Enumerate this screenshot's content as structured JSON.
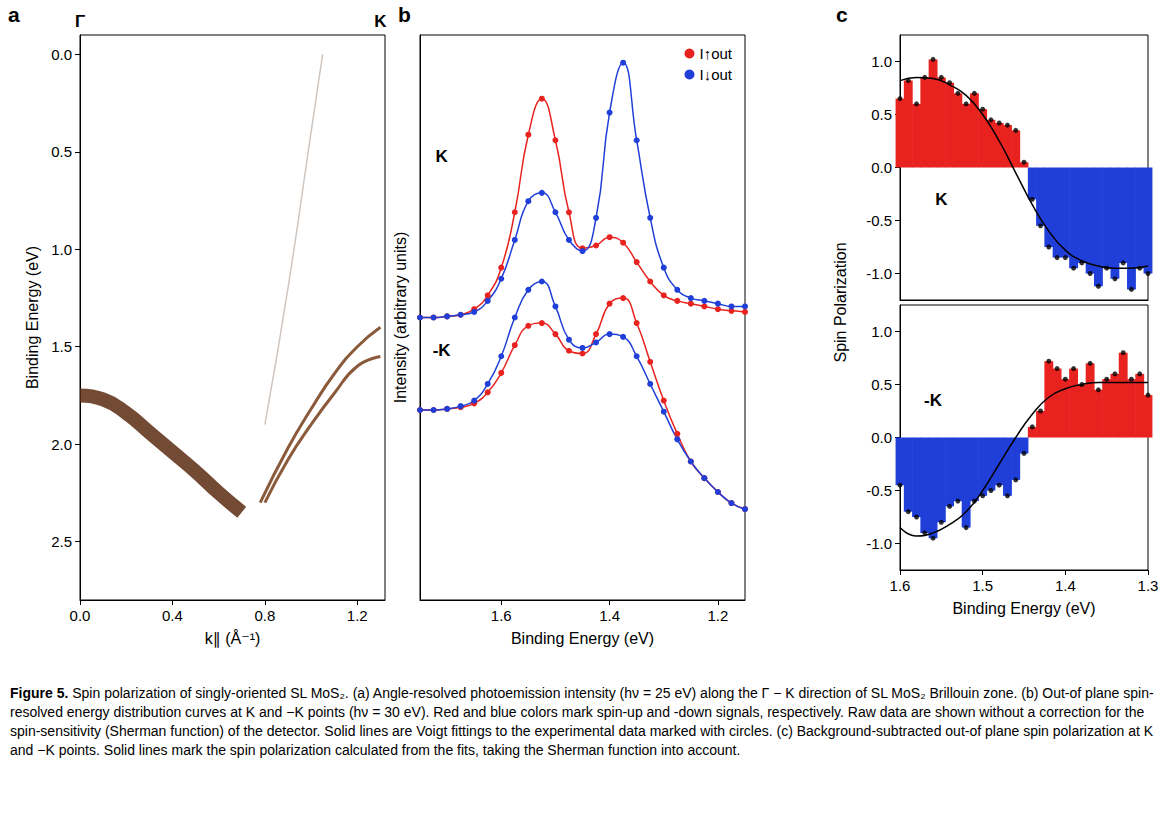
{
  "chart_data": [
    {
      "type": "line",
      "title": "a",
      "xlabel": "k∥ (Å⁻¹)",
      "ylabel": "Binding Energy (eV)",
      "xlim": [
        0,
        1.32
      ],
      "xticks": [
        {
          "value": 0,
          "label": "0.0"
        },
        {
          "value": 0.4,
          "label": "0.4"
        },
        {
          "value": 0.8,
          "label": "0.8"
        },
        {
          "value": 1.2,
          "label": "1.2"
        }
      ],
      "ylim": [
        2.8,
        -0.1
      ],
      "yticks": [
        {
          "value": 0,
          "label": "0.0"
        },
        {
          "value": 0.5,
          "label": "0.5"
        },
        {
          "value": 1,
          "label": "1.0"
        },
        {
          "value": 1.5,
          "label": "1.5"
        },
        {
          "value": 2,
          "label": "2.0"
        },
        {
          "value": 2.5,
          "label": "2.5"
        }
      ],
      "annotations": [
        {
          "text": "Γ",
          "x": 0
        },
        {
          "text": "K",
          "x": 1.3
        }
      ],
      "series": [
        {
          "color": "#5b2c10",
          "x": [
            0,
            0.1,
            0.2,
            0.3,
            0.4,
            0.5,
            0.6,
            0.7
          ],
          "values": [
            1.75,
            1.77,
            1.84,
            1.94,
            2.04,
            2.14,
            2.25,
            2.35
          ]
        },
        {
          "color": "#8a5a3a",
          "x": [
            0.78,
            0.9,
            1.0,
            1.1,
            1.2,
            1.3
          ],
          "values": [
            2.3,
            2.02,
            1.82,
            1.64,
            1.5,
            1.4
          ]
        },
        {
          "color": "#8a5a3a",
          "x": [
            0.8,
            0.9,
            1.0,
            1.1,
            1.2,
            1.3
          ],
          "values": [
            2.3,
            2.08,
            1.9,
            1.74,
            1.6,
            1.55
          ]
        },
        {
          "color": "#cfc6c0",
          "x": [
            0.8,
            0.9,
            1.0,
            1.05
          ],
          "values": [
            1.9,
            1.2,
            0.4,
            0.0
          ]
        }
      ]
    },
    {
      "type": "line",
      "title": "b",
      "xlabel": "Binding Energy (eV)",
      "ylabel": "Intensity (arbitrary units)",
      "tick_labels": "x",
      "legend": "upper right",
      "marker": "circle",
      "xlim": [
        1.75,
        1.15
      ],
      "xticks": [
        {
          "value": 1.6,
          "label": "1.6"
        },
        {
          "value": 1.4,
          "label": "1.4"
        },
        {
          "value": 1.2,
          "label": "1.2"
        }
      ],
      "ylim": [
        0,
        10.2
      ],
      "annotations": [
        {
          "text": "K",
          "x": 1.71,
          "y": 8.0
        },
        {
          "text": "-K",
          "x": 1.71,
          "y": 4.5
        }
      ],
      "series": [
        {
          "name": "I↑out",
          "color": "#e8231f",
          "x": [
            1.75,
            1.725,
            1.7,
            1.675,
            1.65,
            1.625,
            1.6,
            1.575,
            1.55,
            1.525,
            1.5,
            1.475,
            1.45,
            1.425,
            1.4,
            1.375,
            1.35,
            1.325,
            1.3,
            1.275,
            1.25,
            1.225,
            1.2,
            1.175,
            1.15
          ],
          "values": [
            5.1,
            5.1,
            5.12,
            5.15,
            5.25,
            5.5,
            6.0,
            7.0,
            8.4,
            9.05,
            8.3,
            7.0,
            6.35,
            6.4,
            6.55,
            6.45,
            6.1,
            5.75,
            5.5,
            5.4,
            5.35,
            5.3,
            5.25,
            5.22,
            5.2
          ]
        },
        {
          "name": "I↓out",
          "color": "#1f3fd8",
          "x": [
            1.75,
            1.725,
            1.7,
            1.675,
            1.65,
            1.625,
            1.6,
            1.575,
            1.55,
            1.525,
            1.5,
            1.475,
            1.45,
            1.425,
            1.4,
            1.375,
            1.35,
            1.325,
            1.3,
            1.275,
            1.25,
            1.225,
            1.2,
            1.175,
            1.15
          ],
          "values": [
            5.1,
            5.1,
            5.12,
            5.15,
            5.2,
            5.4,
            5.8,
            6.5,
            7.2,
            7.35,
            7.0,
            6.5,
            6.3,
            6.9,
            8.8,
            9.7,
            8.3,
            6.9,
            6.0,
            5.6,
            5.45,
            5.4,
            5.35,
            5.3,
            5.3
          ]
        },
        {
          "name": "I↑out",
          "color": "#e8231f",
          "x": [
            1.75,
            1.725,
            1.7,
            1.675,
            1.65,
            1.625,
            1.6,
            1.575,
            1.55,
            1.525,
            1.5,
            1.475,
            1.45,
            1.425,
            1.4,
            1.375,
            1.35,
            1.325,
            1.3,
            1.275,
            1.25,
            1.225,
            1.2,
            1.175,
            1.15
          ],
          "values": [
            3.43,
            3.43,
            3.45,
            3.48,
            3.55,
            3.75,
            4.1,
            4.6,
            4.95,
            5.0,
            4.8,
            4.5,
            4.45,
            4.8,
            5.35,
            5.45,
            5.0,
            4.3,
            3.6,
            3.0,
            2.5,
            2.2,
            1.95,
            1.75,
            1.64
          ]
        },
        {
          "name": "I↓out",
          "color": "#1f3fd8",
          "x": [
            1.75,
            1.725,
            1.7,
            1.675,
            1.65,
            1.625,
            1.6,
            1.575,
            1.55,
            1.525,
            1.5,
            1.475,
            1.45,
            1.425,
            1.4,
            1.375,
            1.35,
            1.325,
            1.3,
            1.275,
            1.25,
            1.225,
            1.2,
            1.175,
            1.15
          ],
          "values": [
            3.43,
            3.43,
            3.45,
            3.5,
            3.6,
            3.9,
            4.4,
            5.1,
            5.6,
            5.75,
            5.3,
            4.7,
            4.55,
            4.65,
            4.8,
            4.75,
            4.4,
            3.9,
            3.4,
            2.9,
            2.5,
            2.2,
            1.95,
            1.75,
            1.64
          ]
        }
      ]
    },
    {
      "type": "area",
      "title": "c",
      "ylabel": "Spin Polarization",
      "tick_labels": "y",
      "xlim": [
        1.6,
        1.3
      ],
      "ylim": [
        -1.25,
        1.25
      ],
      "yticks": [
        {
          "value": -1,
          "label": "-1.0"
        },
        {
          "value": -0.5,
          "label": "-0.5"
        },
        {
          "value": 0,
          "label": "0.0"
        },
        {
          "value": 0.5,
          "label": "0.5"
        },
        {
          "value": 1,
          "label": "1.0"
        }
      ],
      "annotations": [
        {
          "text": "K",
          "x": 1.55,
          "y": -0.3
        }
      ],
      "series": [
        {
          "type": "area",
          "x": [
            1.6,
            1.59,
            1.58,
            1.57,
            1.56,
            1.55,
            1.54,
            1.53,
            1.52,
            1.51,
            1.5,
            1.49,
            1.48,
            1.47,
            1.46,
            1.45,
            1.44,
            1.43,
            1.42,
            1.41,
            1.4,
            1.39,
            1.38,
            1.37,
            1.36,
            1.35,
            1.34,
            1.33,
            1.32,
            1.31,
            1.3
          ],
          "values": [
            0.65,
            0.82,
            0.6,
            0.85,
            1.02,
            0.85,
            0.8,
            0.7,
            0.6,
            0.7,
            0.55,
            0.45,
            0.42,
            0.4,
            0.35,
            0.05,
            -0.3,
            -0.55,
            -0.75,
            -0.85,
            -0.85,
            -0.95,
            -0.9,
            -1.0,
            -1.12,
            -0.95,
            -1.05,
            -0.9,
            -1.15,
            -0.95,
            -1.0
          ],
          "colors": [
            "#e8231f",
            "#e8231f",
            "#e8231f",
            "#e8231f",
            "#e8231f",
            "#e8231f",
            "#e8231f",
            "#e8231f",
            "#e8231f",
            "#e8231f",
            "#e8231f",
            "#e8231f",
            "#e8231f",
            "#e8231f",
            "#e8231f",
            "#e8231f",
            "#1f3fd8",
            "#1f3fd8",
            "#1f3fd8",
            "#1f3fd8",
            "#1f3fd8",
            "#1f3fd8",
            "#1f3fd8",
            "#1f3fd8",
            "#1f3fd8",
            "#1f3fd8",
            "#1f3fd8",
            "#1f3fd8",
            "#1f3fd8",
            "#1f3fd8",
            "#1f3fd8"
          ]
        },
        {
          "type": "line",
          "color": "#000000",
          "x": [
            1.6,
            1.58,
            1.56,
            1.54,
            1.52,
            1.5,
            1.48,
            1.46,
            1.44,
            1.42,
            1.4,
            1.38,
            1.36,
            1.34,
            1.32,
            1.3
          ],
          "values": [
            0.82,
            0.85,
            0.84,
            0.78,
            0.68,
            0.5,
            0.25,
            -0.05,
            -0.35,
            -0.6,
            -0.78,
            -0.88,
            -0.93,
            -0.95,
            -0.95,
            -0.93
          ]
        }
      ]
    },
    {
      "type": "area",
      "xlabel": "Binding Energy (eV)",
      "xlim": [
        1.6,
        1.3
      ],
      "xticks": [
        {
          "value": 1.6,
          "label": "1.6"
        },
        {
          "value": 1.5,
          "label": "1.5"
        },
        {
          "value": 1.4,
          "label": "1.4"
        },
        {
          "value": 1.3,
          "label": "1.3"
        }
      ],
      "ylim": [
        -1.25,
        1.25
      ],
      "yticks": [
        {
          "value": -1,
          "label": "-1.0"
        },
        {
          "value": -0.5,
          "label": "-0.5"
        },
        {
          "value": 0,
          "label": "0.0"
        },
        {
          "value": 0.5,
          "label": "0.5"
        },
        {
          "value": 1,
          "label": "1.0"
        }
      ],
      "annotations": [
        {
          "text": "-K",
          "x": 1.56,
          "y": 0.35
        }
      ],
      "series": [
        {
          "type": "area",
          "x": [
            1.6,
            1.59,
            1.58,
            1.57,
            1.56,
            1.55,
            1.54,
            1.53,
            1.52,
            1.51,
            1.5,
            1.49,
            1.48,
            1.47,
            1.46,
            1.45,
            1.44,
            1.43,
            1.42,
            1.41,
            1.4,
            1.39,
            1.38,
            1.37,
            1.36,
            1.35,
            1.34,
            1.33,
            1.32,
            1.31,
            1.3
          ],
          "values": [
            -0.45,
            -0.7,
            -0.75,
            -0.9,
            -0.95,
            -0.8,
            -0.65,
            -0.6,
            -0.85,
            -0.6,
            -0.55,
            -0.5,
            -0.45,
            -0.55,
            -0.4,
            -0.15,
            0.1,
            0.25,
            0.72,
            0.65,
            0.55,
            0.65,
            0.5,
            0.7,
            0.45,
            0.55,
            0.6,
            0.8,
            0.55,
            0.6,
            0.4
          ],
          "colors": [
            "#1f3fd8",
            "#1f3fd8",
            "#1f3fd8",
            "#1f3fd8",
            "#1f3fd8",
            "#1f3fd8",
            "#1f3fd8",
            "#1f3fd8",
            "#1f3fd8",
            "#1f3fd8",
            "#1f3fd8",
            "#1f3fd8",
            "#1f3fd8",
            "#1f3fd8",
            "#1f3fd8",
            "#1f3fd8",
            "#e8231f",
            "#e8231f",
            "#e8231f",
            "#e8231f",
            "#e8231f",
            "#e8231f",
            "#e8231f",
            "#e8231f",
            "#e8231f",
            "#e8231f",
            "#e8231f",
            "#e8231f",
            "#e8231f",
            "#e8231f",
            "#e8231f"
          ]
        },
        {
          "type": "line",
          "color": "#000000",
          "x": [
            1.6,
            1.58,
            1.56,
            1.54,
            1.52,
            1.5,
            1.48,
            1.46,
            1.44,
            1.42,
            1.4,
            1.38,
            1.36,
            1.34,
            1.32,
            1.3
          ],
          "values": [
            -0.85,
            -0.93,
            -0.9,
            -0.82,
            -0.7,
            -0.5,
            -0.25,
            0.0,
            0.22,
            0.38,
            0.46,
            0.5,
            0.52,
            0.52,
            0.52,
            0.52
          ]
        }
      ]
    }
  ],
  "caption": {
    "label": "Figure 5.",
    "text": "Spin polarization of singly-oriented SL MoS₂. (a) Angle-resolved photoemission intensity (hν = 25 eV) along the Γ − K direction of SL MoS₂ Brillouin zone. (b) Out-of plane spin-resolved energy distribution curves at K and −K points (hν = 30 eV). Red and blue colors mark spin-up and -down signals, respectively. Raw data are shown without a correction for the spin-sensitivity (Sherman function) of the detector. Solid lines are Voigt fittings to the experimental data marked with circles. (c) Background-subtracted out-of plane spin polarization at K and −K points. Solid lines mark the spin polarization calculated from the fits, taking the Sherman function into account."
  }
}
